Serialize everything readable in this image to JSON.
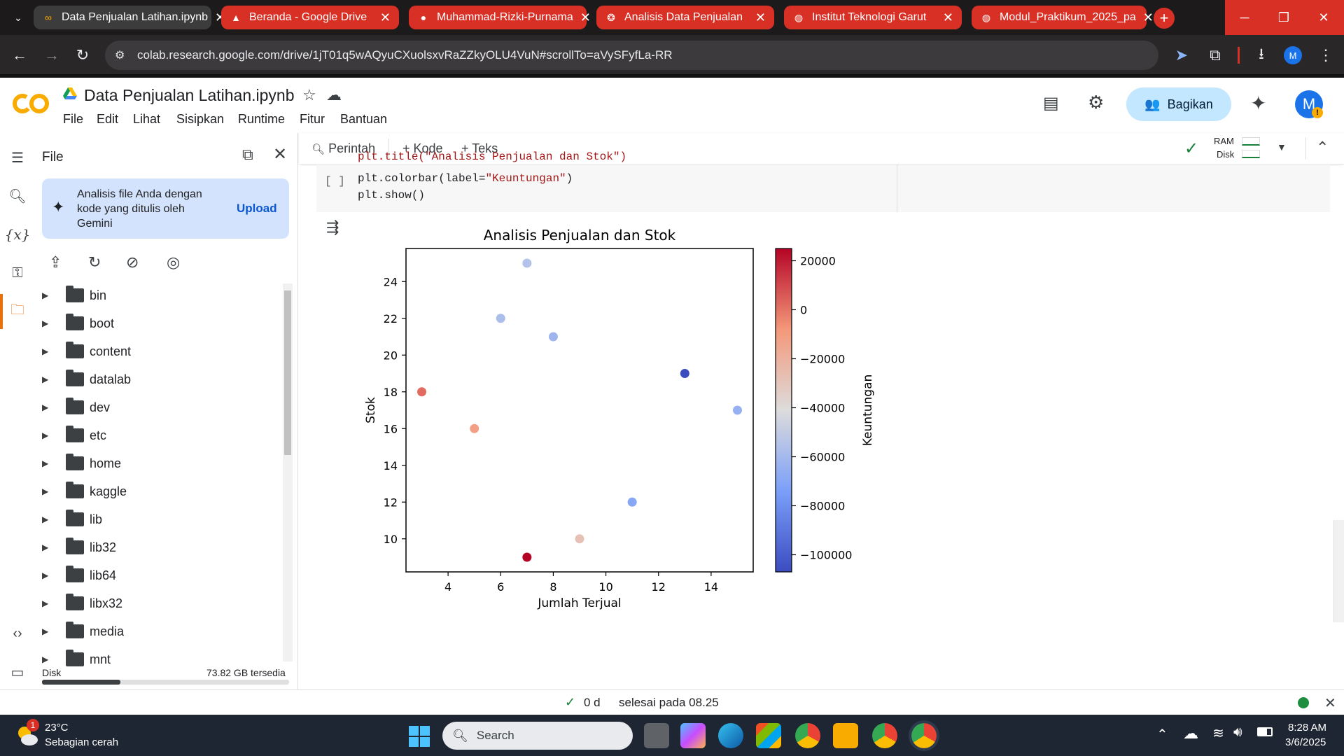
{
  "browser": {
    "tabs": [
      {
        "label": "Data Penjualan Latihan.ipynb",
        "icon": "colab-icon",
        "style": "active"
      },
      {
        "label": "Beranda - Google Drive",
        "icon": "drive-icon",
        "style": "red"
      },
      {
        "label": "Muhammad-Rizki-Purnama",
        "icon": "github-icon",
        "style": "red"
      },
      {
        "label": "Analisis Data Penjualan",
        "icon": "openai-icon",
        "style": "red"
      },
      {
        "label": "Institut Teknologi Garut",
        "icon": "globe-icon",
        "style": "red"
      },
      {
        "label": "Modul_Praktikum_2025_pa",
        "icon": "globe-icon",
        "style": "red"
      }
    ],
    "url": "colab.research.google.com/drive/1jT01q5wAQyuCXuolsxvRaZZkyOLU4VuN#scrollTo=aVySFyfLa-RR",
    "profile_initial": "M"
  },
  "colab": {
    "notebook_title": "Data Penjualan Latihan.ipynb",
    "menu": [
      "File",
      "Edit",
      "Lihat",
      "Sisipkan",
      "Runtime",
      "Fitur",
      "Bantuan"
    ],
    "share_label": "Bagikan",
    "avatar_initial": "M"
  },
  "sidebar": {
    "title": "File",
    "gemini_text": "Analisis file Anda dengan kode yang ditulis oleh Gemini",
    "upload_label": "Upload",
    "folders": [
      "bin",
      "boot",
      "content",
      "datalab",
      "dev",
      "etc",
      "home",
      "kaggle",
      "lib",
      "lib32",
      "lib64",
      "libx32",
      "media",
      "mnt"
    ],
    "disk_label": "Disk",
    "disk_free": "73.82 GB tersedia"
  },
  "toolbar": {
    "search_label": "Perintah",
    "add_code": "+ Kode",
    "add_text": "+ Teks",
    "ram_label": "RAM",
    "disk_label": "Disk"
  },
  "cell": {
    "bracket": "[ ]",
    "line_partial": "plt.title(\"Analisis Penjualan dan Stok\")",
    "line2_fn": "plt.colorbar(label=",
    "line2_str": "\"Keuntungan\"",
    "line2_end": ")",
    "line3": "plt.show()"
  },
  "chart_data": {
    "type": "scatter",
    "title": "Analisis Penjualan dan Stok",
    "xlabel": "Jumlah Terjual",
    "ylabel": "Stok",
    "xlim": [
      2.4,
      15.6
    ],
    "ylim": [
      8.2,
      25.8
    ],
    "xticks": [
      4,
      6,
      8,
      10,
      12,
      14
    ],
    "yticks": [
      10,
      12,
      14,
      16,
      18,
      20,
      22,
      24
    ],
    "colorbar_label": "Keuntungan",
    "colorbar_ticks": [
      20000,
      0,
      -20000,
      -40000,
      -60000,
      -80000,
      -100000
    ],
    "colorbar_range": [
      -107000,
      25000
    ],
    "colormap": "coolwarm",
    "points": [
      {
        "x": 3,
        "y": 18,
        "c": 2000
      },
      {
        "x": 5,
        "y": 16,
        "c": -12000
      },
      {
        "x": 6,
        "y": 22,
        "c": -58000
      },
      {
        "x": 7,
        "y": 25,
        "c": -55000
      },
      {
        "x": 7,
        "y": 9,
        "c": 25000
      },
      {
        "x": 8,
        "y": 21,
        "c": -62000
      },
      {
        "x": 9,
        "y": 10,
        "c": -28000
      },
      {
        "x": 11,
        "y": 12,
        "c": -70000
      },
      {
        "x": 13,
        "y": 19,
        "c": -107000
      },
      {
        "x": 15,
        "y": 17,
        "c": -65000
      }
    ]
  },
  "status": {
    "elapsed": "0 d",
    "finished": "selesai pada 08.25"
  },
  "taskbar": {
    "temp": "23°C",
    "weather": "Sebagian cerah",
    "weather_badge": "1",
    "search_placeholder": "Search",
    "time": "8:28 AM",
    "date": "3/6/2025"
  }
}
